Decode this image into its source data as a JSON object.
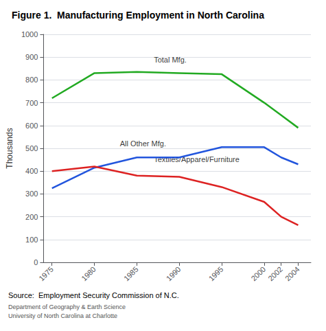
{
  "chart_data": {
    "type": "line",
    "title": "Figure 1.  Manufacturing Employment in North Carolina",
    "ylabel": "Thousands",
    "source": "Source:  Employment Security Commission of N.C.",
    "notes": [
      "Department of Geography & Earth Science",
      "University of North Carolina at Charlotte"
    ],
    "x": [
      1975,
      1980,
      1985,
      1990,
      1995,
      2000,
      2002,
      2004
    ],
    "series": [
      {
        "name": "Total Mfg.",
        "color": "#22aa22",
        "values": [
          720,
          830,
          835,
          830,
          825,
          700,
          645,
          590
        ]
      },
      {
        "name": "All Other Mfg.",
        "color": "#2255dd",
        "values": [
          325,
          415,
          460,
          460,
          505,
          505,
          460,
          430
        ]
      },
      {
        "name": "Textiles/Apparel/Furniture",
        "color": "#dd2222",
        "values": [
          400,
          420,
          380,
          375,
          330,
          265,
          200,
          163
        ]
      }
    ],
    "annotations": [
      {
        "text": "Total Mfg.",
        "x": 1987,
        "y": 865
      },
      {
        "text": "All Other Mfg.",
        "x": 1983,
        "y": 500
      },
      {
        "text": "Textiles/Apparel/Furniture",
        "x": 1987,
        "y": 430
      }
    ],
    "xlim": [
      1974,
      2005.5
    ],
    "xticks": [
      1975,
      1980,
      1985,
      1990,
      1995,
      2000,
      2002,
      2004
    ],
    "ylim": [
      0,
      1000
    ],
    "yticks": [
      0,
      100,
      200,
      300,
      400,
      500,
      600,
      700,
      800,
      900,
      1000
    ],
    "grid": true
  }
}
